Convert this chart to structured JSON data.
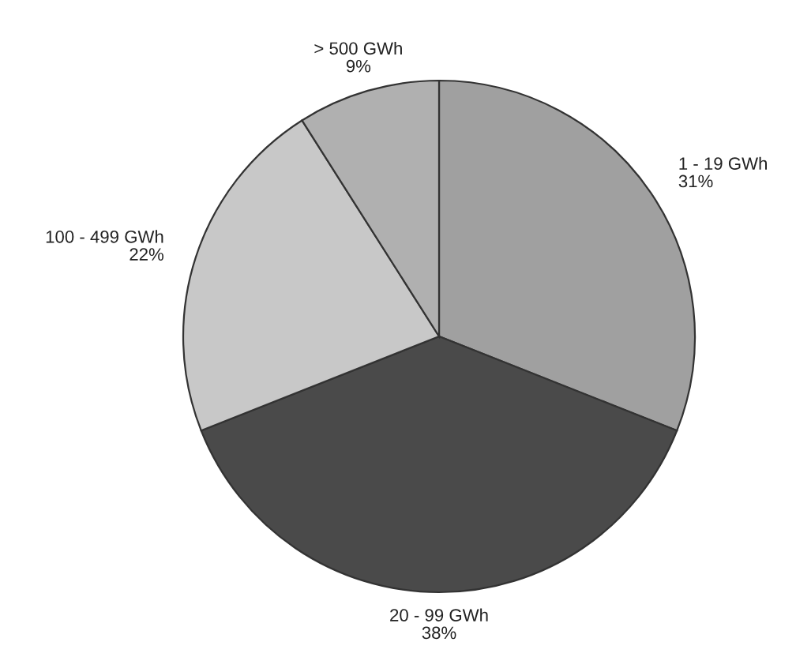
{
  "chart_data": {
    "type": "pie",
    "categories": [
      "1 - 19 GWh",
      "20 - 99 GWh",
      "100 - 499 GWh",
      "> 500 GWh"
    ],
    "values": [
      31,
      38,
      22,
      9
    ],
    "value_labels": [
      "31%",
      "38%",
      "22%",
      "9%"
    ],
    "colors": [
      "#a0a0a0",
      "#4a4a4a",
      "#c8c8c8",
      "#b0b0b0"
    ]
  }
}
